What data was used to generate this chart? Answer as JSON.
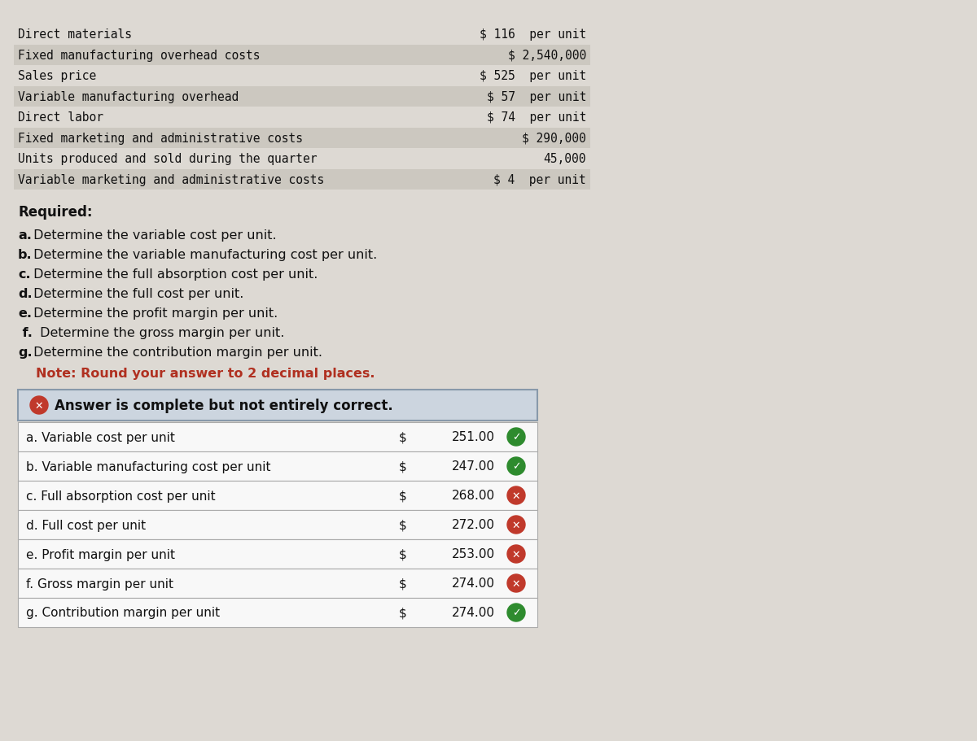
{
  "background_color": "#ddd9d3",
  "top_section": {
    "rows": [
      {
        "label": "Direct materials",
        "value": "$ 116  per unit",
        "shaded": false
      },
      {
        "label": "Fixed manufacturing overhead costs",
        "value": "$ 2,540,000",
        "shaded": true
      },
      {
        "label": "Sales price",
        "value": "$ 525  per unit",
        "shaded": false
      },
      {
        "label": "Variable manufacturing overhead",
        "value": "$ 57  per unit",
        "shaded": true
      },
      {
        "label": "Direct labor",
        "value": "$ 74  per unit",
        "shaded": false
      },
      {
        "label": "Fixed marketing and administrative costs",
        "value": "$ 290,000",
        "shaded": true
      },
      {
        "label": "Units produced and sold during the quarter",
        "value": "45,000",
        "shaded": false
      },
      {
        "label": "Variable marketing and administrative costs",
        "value": "$ 4  per unit",
        "shaded": true
      }
    ],
    "row_shade_color": "#ccc8c0",
    "font_family": "monospace",
    "font_size": 10.5
  },
  "required_label": "Required:",
  "required_items": [
    {
      "prefix": "a.",
      "bold_prefix": true,
      "text": " Determine the variable cost per unit.",
      "indent": 0
    },
    {
      "prefix": "b.",
      "bold_prefix": true,
      "text": " Determine the variable manufacturing cost per unit.",
      "indent": 0
    },
    {
      "prefix": "c.",
      "bold_prefix": true,
      "text": " Determine the full absorption cost per unit.",
      "indent": 0
    },
    {
      "prefix": "d.",
      "bold_prefix": true,
      "text": " Determine the full cost per unit.",
      "indent": 0
    },
    {
      "prefix": "e.",
      "bold_prefix": true,
      "text": " Determine the profit margin per unit.",
      "indent": 0
    },
    {
      "prefix": " f.",
      "bold_prefix": true,
      "text": " Determine the gross margin per unit.",
      "indent": 0
    },
    {
      "prefix": "g.",
      "bold_prefix": true,
      "text": " Determine the contribution margin per unit.",
      "indent": 0
    }
  ],
  "note_text": "Note: Round your answer to 2 decimal places.",
  "note_color": "#b03020",
  "answer_banner_text": "Answer is complete but not entirely correct.",
  "answer_banner_bg": "#ccd5df",
  "answer_banner_border": "#8899aa",
  "table_rows": [
    {
      "label": "a. Variable cost per unit",
      "value": "251.00",
      "correct": true
    },
    {
      "label": "b. Variable manufacturing cost per unit",
      "value": "247.00",
      "correct": true
    },
    {
      "label": "c. Full absorption cost per unit",
      "value": "268.00",
      "correct": false
    },
    {
      "label": "d. Full cost per unit",
      "value": "272.00",
      "correct": false
    },
    {
      "label": "e. Profit margin per unit",
      "value": "253.00",
      "correct": false
    },
    {
      "label": "f. Gross margin per unit",
      "value": "274.00",
      "correct": false
    },
    {
      "label": "g. Contribution margin per unit",
      "value": "274.00",
      "correct": true
    }
  ],
  "table_border_color": "#aaaaaa",
  "correct_color": "#2e8b2e",
  "incorrect_color": "#c0392b"
}
